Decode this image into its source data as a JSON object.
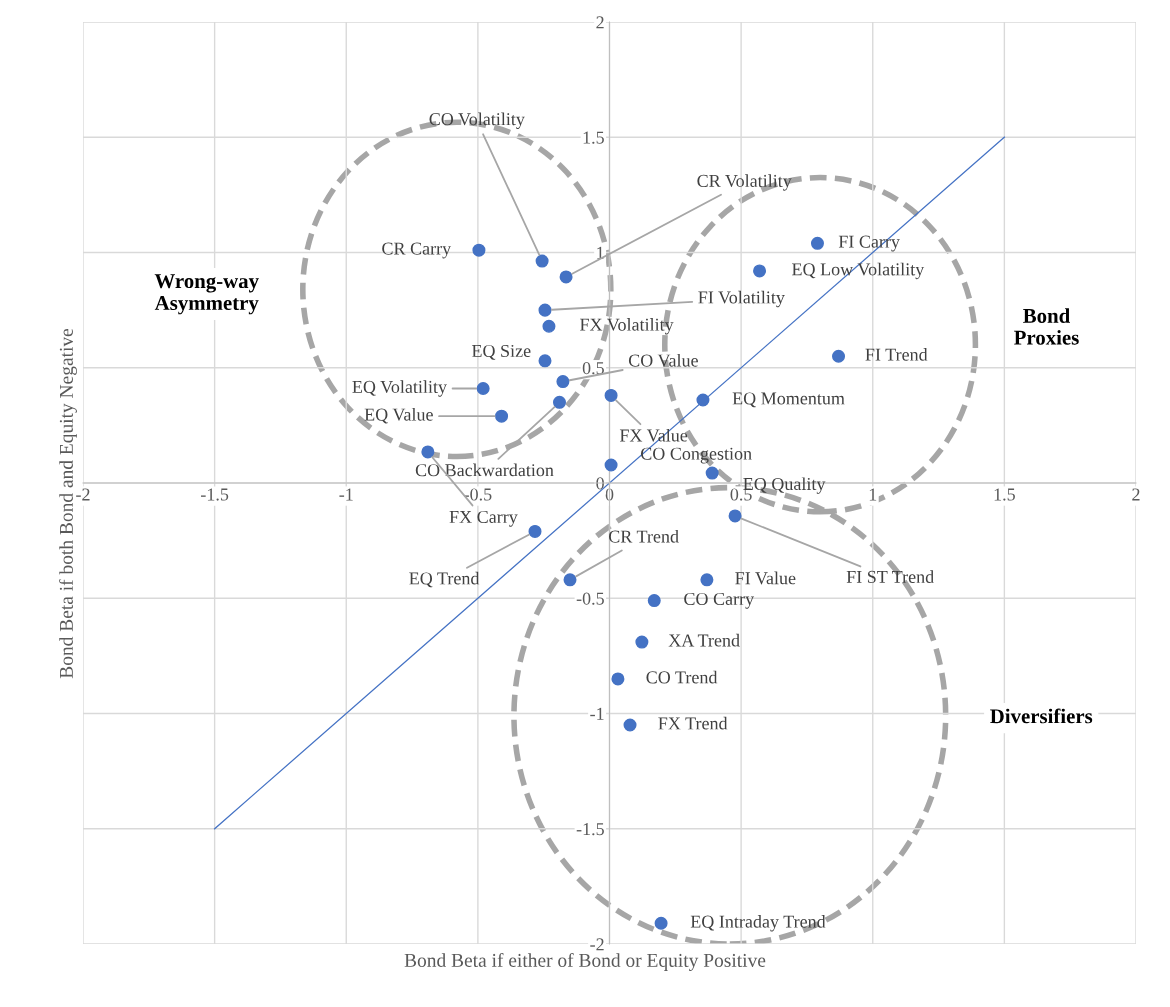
{
  "chart_data": {
    "type": "scatter",
    "xlabel": "Bond Beta if either of Bond or Equity Positive",
    "ylabel": "Bond Beta if both Bond and Equity Negative",
    "xlim": [
      -2,
      2
    ],
    "ylim": [
      -2,
      2
    ],
    "xticks": [
      -2,
      -1.5,
      -1,
      -0.5,
      0,
      0.5,
      1,
      1.5,
      2
    ],
    "yticks": [
      -2,
      -1.5,
      -1,
      -0.5,
      0,
      0.5,
      1,
      1.5,
      2
    ],
    "grid": true,
    "marker": "circle",
    "series": [
      {
        "color": "#4472c4",
        "x": [
          -0.256,
          -0.496,
          -0.165,
          -0.245,
          -0.23,
          -0.245,
          -0.177,
          -0.48,
          0.006,
          -0.19,
          -0.41,
          -0.69,
          0.006,
          0.39,
          0.79,
          0.57,
          0.87,
          0.355,
          0.477,
          -0.283,
          -0.15,
          0.37,
          0.17,
          0.123,
          0.032,
          0.078,
          0.196
        ],
        "values": [
          0.963,
          1.01,
          0.894,
          0.75,
          0.68,
          0.53,
          0.44,
          0.41,
          0.38,
          0.35,
          0.29,
          0.135,
          0.078,
          0.043,
          1.04,
          0.92,
          0.55,
          0.36,
          -0.143,
          -0.21,
          -0.42,
          -0.42,
          -0.51,
          -0.69,
          -0.85,
          -1.05,
          -1.91
        ],
        "value_labels": [
          "CO Volatility",
          "CR Carry",
          "CR Volatility",
          "FI Volatility",
          "FX Volatility",
          "EQ Size",
          "CO Value",
          "EQ Volatility",
          "FX Value",
          "CO Backwardation",
          "EQ Value",
          "FX Carry",
          "CO Congestion",
          "EQ Quality",
          "FI Carry",
          "EQ Low Volatility",
          "FI Trend",
          "EQ Momentum",
          "FI ST Trend",
          "EQ Trend",
          "CR Trend",
          "FI Value",
          "CO Carry",
          "XA Trend",
          "CO Trend",
          "FX Trend",
          "EQ Intraday Trend"
        ]
      },
      {
        "type": "line",
        "color": "#4472c4",
        "x": [
          -1.5,
          1.5
        ],
        "values": [
          -1.5,
          1.5
        ],
        "line_style": "solid",
        "marker": "none"
      }
    ],
    "annotations": [
      "Wrong-way\nAsymmetry",
      "Bond\nProxies",
      "Diversifiers"
    ]
  }
}
